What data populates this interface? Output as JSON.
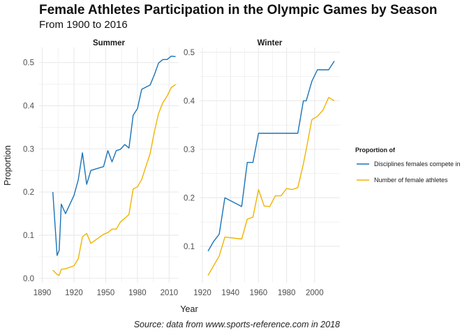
{
  "title": "Female Athletes Participation in the Olympic Games by Season",
  "subtitle": "From 1900 to 2016",
  "caption": "Source: data from www.sports-reference.com in 2018",
  "colors": {
    "disciplines": "#1a73b8",
    "athletes": "#f0b400",
    "grid": "#ebebeb",
    "text": "#4d4d4d"
  },
  "chart_data": {
    "type": "line",
    "xlabel": "Year",
    "ylabel": "Proportion",
    "legend": {
      "title": "Proportion of",
      "placement": "right"
    },
    "grid": true,
    "panels": [
      {
        "strip": "Summer",
        "xlim": [
          1887,
          2019
        ],
        "ylim": [
          -0.01,
          0.535
        ],
        "xticks": [
          1890,
          1920,
          1950,
          1980,
          2010
        ],
        "yticks": [
          0.0,
          0.1,
          0.2,
          0.3,
          0.4,
          0.5
        ],
        "ytick_labels": [
          "0.0",
          "0.1",
          "0.2",
          "0.3",
          "0.4",
          "0.5"
        ],
        "series": [
          {
            "name": "Disciplines females compete in",
            "x": [
              1900,
              1904,
              1906,
              1908,
              1912,
              1920,
              1924,
              1928,
              1932,
              1936,
              1948,
              1952,
              1956,
              1960,
              1964,
              1968,
              1972,
              1976,
              1980,
              1984,
              1988,
              1992,
              1996,
              2000,
              2004,
              2008,
              2012,
              2016
            ],
            "y": [
              0.2,
              0.053,
              0.065,
              0.172,
              0.15,
              0.192,
              0.228,
              0.291,
              0.218,
              0.25,
              0.259,
              0.296,
              0.27,
              0.296,
              0.299,
              0.31,
              0.302,
              0.378,
              0.393,
              0.438,
              0.443,
              0.448,
              0.472,
              0.499,
              0.507,
              0.507,
              0.515,
              0.514
            ]
          },
          {
            "name": "Number of female athletes",
            "x": [
              1900,
              1904,
              1906,
              1908,
              1912,
              1920,
              1924,
              1928,
              1932,
              1936,
              1948,
              1952,
              1956,
              1960,
              1964,
              1968,
              1972,
              1976,
              1980,
              1984,
              1988,
              1992,
              1996,
              2000,
              2004,
              2008,
              2012,
              2016
            ],
            "y": [
              0.019,
              0.009,
              0.007,
              0.021,
              0.022,
              0.029,
              0.045,
              0.096,
              0.104,
              0.081,
              0.102,
              0.106,
              0.114,
              0.114,
              0.131,
              0.139,
              0.148,
              0.207,
              0.212,
              0.229,
              0.259,
              0.289,
              0.34,
              0.382,
              0.407,
              0.422,
              0.442,
              0.449
            ]
          }
        ]
      },
      {
        "strip": "Winter",
        "xlim": [
          1918,
          2018
        ],
        "ylim": [
          0.025,
          0.51
        ],
        "xticks": [
          1920,
          1940,
          1960,
          1980,
          2000
        ],
        "yticks": [
          0.1,
          0.2,
          0.3,
          0.4,
          0.5
        ],
        "ytick_labels": [
          "0.1",
          "0.2",
          "0.3",
          "0.4",
          "0.5"
        ],
        "series": [
          {
            "name": "Disciplines females compete in",
            "x": [
              1924,
              1928,
              1932,
              1936,
              1948,
              1952,
              1956,
              1960,
              1964,
              1968,
              1972,
              1976,
              1980,
              1984,
              1988,
              1992,
              1994,
              1998,
              2002,
              2006,
              2010,
              2014
            ],
            "y": [
              0.09,
              0.11,
              0.125,
              0.2,
              0.182,
              0.273,
              0.273,
              0.333,
              0.333,
              0.333,
              0.333,
              0.333,
              0.333,
              0.333,
              0.333,
              0.4,
              0.4,
              0.44,
              0.464,
              0.464,
              0.464,
              0.482
            ]
          },
          {
            "name": "Number of female athletes",
            "x": [
              1924,
              1928,
              1932,
              1936,
              1948,
              1952,
              1956,
              1960,
              1964,
              1968,
              1972,
              1976,
              1980,
              1984,
              1988,
              1992,
              1994,
              1998,
              2002,
              2006,
              2010,
              2014
            ],
            "y": [
              0.04,
              0.06,
              0.08,
              0.119,
              0.115,
              0.156,
              0.16,
              0.217,
              0.183,
              0.182,
              0.204,
              0.204,
              0.219,
              0.217,
              0.221,
              0.27,
              0.3,
              0.361,
              0.368,
              0.381,
              0.407,
              0.4
            ]
          }
        ]
      }
    ]
  }
}
